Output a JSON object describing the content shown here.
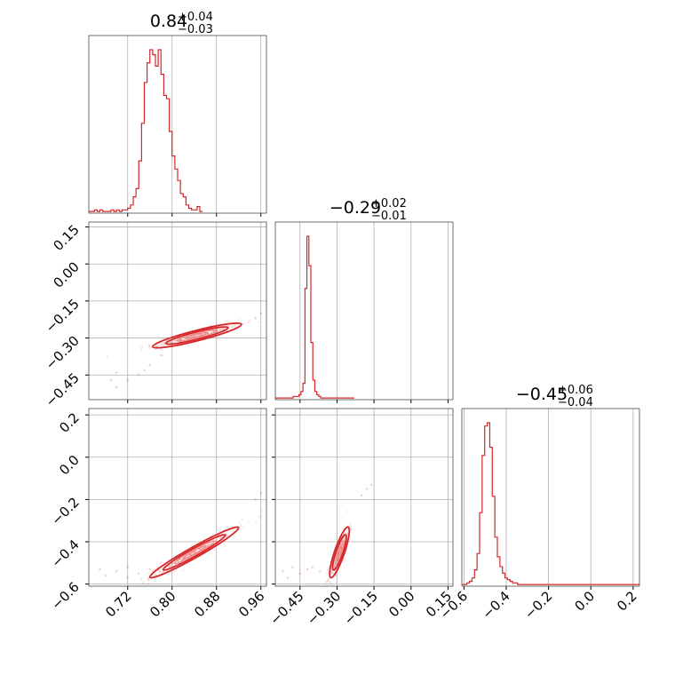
{
  "chart_data": {
    "type": "scatter",
    "colors": {
      "series": "#d62728",
      "grid": "#b0b0b0",
      "frame": "#4a4a4a"
    },
    "grid": true,
    "parameters": [
      {
        "title": {
          "median": "0.84",
          "upper": "+0.04",
          "lower": "−0.03"
        },
        "range": [
          0.65,
          0.97
        ],
        "ticks": [
          {
            "value": 0.72,
            "label": "0.72"
          },
          {
            "value": 0.8,
            "label": "0.80"
          },
          {
            "value": 0.88,
            "label": "0.88"
          },
          {
            "value": 0.96,
            "label": "0.96"
          }
        ],
        "hist": {
          "bin_width": 0.005,
          "start": 0.65,
          "counts": [
            1,
            1,
            2,
            1,
            2,
            1,
            1,
            1,
            2,
            1,
            2,
            1,
            2,
            2,
            3,
            5,
            10,
            15,
            32,
            55,
            80,
            92,
            100,
            97,
            90,
            100,
            85,
            72,
            70,
            50,
            35,
            27,
            20,
            12,
            10,
            5,
            3,
            2,
            2,
            4,
            1
          ]
        }
      },
      {
        "title": {
          "median": "−0.29",
          "upper": "+0.02",
          "lower": "−0.01"
        },
        "range": [
          -0.55,
          0.17
        ],
        "ticks": [
          {
            "value": -0.45,
            "label": "−0.45"
          },
          {
            "value": -0.3,
            "label": "−0.30"
          },
          {
            "value": -0.15,
            "label": "−0.15"
          },
          {
            "value": 0.0,
            "label": "0.00"
          },
          {
            "value": 0.15,
            "label": "0.15"
          }
        ],
        "hist": {
          "bin_width": 0.008,
          "start": -0.55,
          "counts": [
            1,
            1,
            1,
            1,
            1,
            1,
            1,
            1,
            1,
            2,
            2,
            2,
            3,
            5,
            10,
            68,
            100,
            82,
            35,
            12,
            5,
            3,
            2,
            1,
            1,
            1,
            1,
            1,
            1,
            1,
            1,
            1,
            1,
            1,
            1,
            1,
            1,
            1,
            1,
            1
          ]
        }
      },
      {
        "title": {
          "median": "−0.45",
          "upper": "+0.06",
          "lower": "−0.04"
        },
        "range": [
          -0.61,
          0.23
        ],
        "ticks": [
          {
            "value": -0.6,
            "label": "−0.6"
          },
          {
            "value": -0.4,
            "label": "−0.4"
          },
          {
            "value": -0.2,
            "label": "−0.2"
          },
          {
            "value": 0.0,
            "label": "0.0"
          },
          {
            "value": 0.2,
            "label": "0.2"
          }
        ],
        "hist": {
          "bin_width": 0.012,
          "start": -0.61,
          "counts": [
            1,
            1,
            2,
            3,
            5,
            10,
            20,
            45,
            80,
            98,
            100,
            85,
            55,
            30,
            18,
            12,
            8,
            5,
            4,
            3,
            2,
            2,
            1,
            1,
            1,
            1,
            1,
            1,
            1,
            1,
            1,
            1,
            1,
            1,
            1,
            1,
            1,
            1,
            1,
            1,
            1,
            1,
            1,
            1,
            1,
            1,
            1,
            1,
            1,
            1,
            1,
            1,
            1,
            1,
            1,
            1,
            1,
            1,
            1,
            1,
            1,
            1,
            1,
            1,
            1,
            1,
            1,
            1,
            1,
            1
          ]
        }
      }
    ],
    "panels": [
      {
        "x": 0,
        "y": 1,
        "mean": [
          0.845,
          -0.29
        ],
        "sd": [
          0.04,
          0.025
        ],
        "corr": 0.9,
        "outliers": [
          [
            0.69,
            -0.47
          ],
          [
            0.7,
            -0.44
          ],
          [
            0.72,
            -0.47
          ],
          [
            0.74,
            -0.45
          ],
          [
            0.76,
            -0.41
          ],
          [
            0.78,
            -0.37
          ],
          [
            0.96,
            -0.2
          ],
          [
            0.95,
            -0.22
          ],
          [
            0.75,
            -0.43
          ],
          [
            0.7,
            -0.5
          ]
        ]
      },
      {
        "x": 0,
        "y": 2,
        "mean": [
          0.84,
          -0.45
        ],
        "sd": [
          0.04,
          0.06
        ],
        "corr": 0.97,
        "outliers": [
          [
            0.67,
            -0.53
          ],
          [
            0.7,
            -0.54
          ],
          [
            0.72,
            -0.52
          ],
          [
            0.74,
            -0.55
          ],
          [
            0.76,
            -0.53
          ],
          [
            0.68,
            -0.56
          ],
          [
            0.96,
            -0.17
          ],
          [
            0.95,
            -0.2
          ],
          [
            0.78,
            -0.5
          ],
          [
            0.72,
            -0.57
          ]
        ]
      },
      {
        "x": 1,
        "y": 2,
        "mean": [
          -0.29,
          -0.45
        ],
        "sd": [
          0.02,
          0.06
        ],
        "corr": 0.85,
        "outliers": [
          [
            -0.52,
            -0.54
          ],
          [
            -0.48,
            -0.52
          ],
          [
            -0.45,
            -0.55
          ],
          [
            -0.42,
            -0.53
          ],
          [
            -0.4,
            -0.52
          ],
          [
            -0.37,
            -0.54
          ],
          [
            -0.2,
            -0.18
          ],
          [
            -0.18,
            -0.15
          ],
          [
            -0.16,
            -0.13
          ],
          [
            -0.5,
            -0.57
          ]
        ]
      }
    ]
  }
}
